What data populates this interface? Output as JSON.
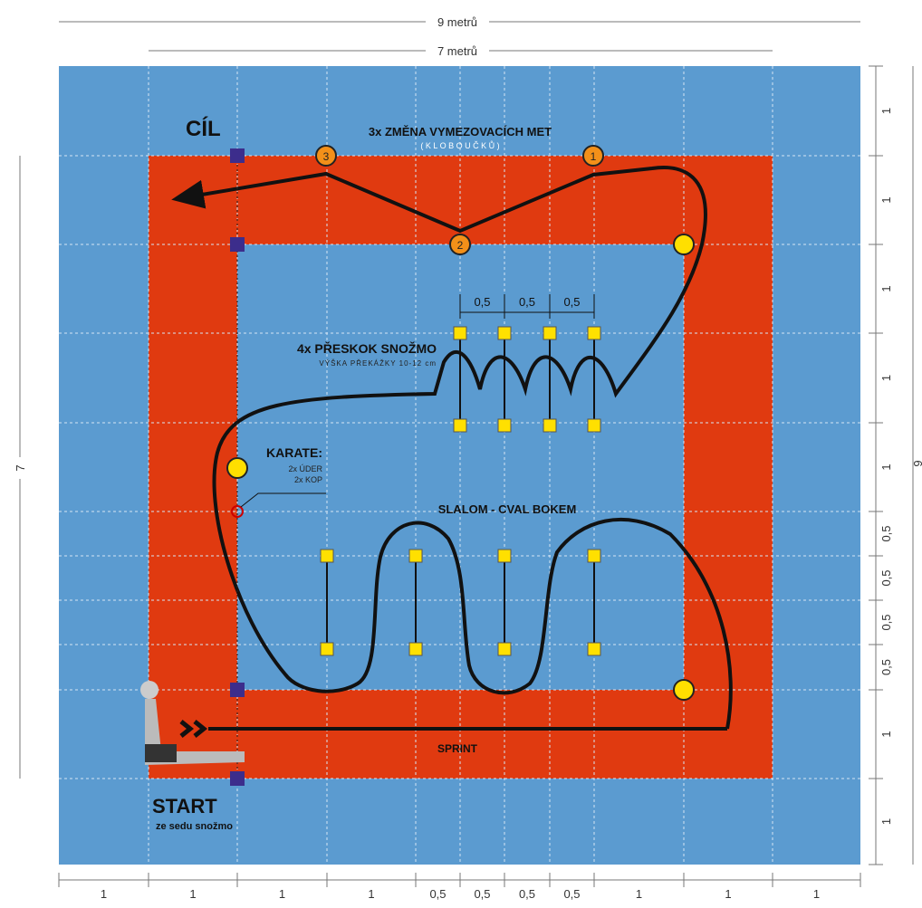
{
  "dimensions": {
    "top_outer": "9 metrů",
    "top_inner": "7 metrů",
    "left": "7",
    "right": "9",
    "bottom": [
      "1",
      "1",
      "1",
      "1",
      "0,5",
      "0,5",
      "0,5",
      "0,5",
      "1",
      "1",
      "1"
    ],
    "right_side": [
      "1",
      "1",
      "1",
      "1",
      "1",
      "0,5",
      "0,5",
      "0,5",
      "0,5",
      "1",
      "1"
    ]
  },
  "finish": {
    "label": "CÍL"
  },
  "cones": {
    "title": "3x ZMĚNA VYMEZOVACÍCH MET",
    "subtitle": "( K L O B O U Č K Ů )",
    "numbers": [
      "1",
      "2",
      "3"
    ]
  },
  "jumps": {
    "title": "4x PŘESKOK SNOŽMO",
    "subtitle": "VÝŠKA PŘEKÁŽKY 10-12 cm",
    "spacing": [
      "0,5",
      "0,5",
      "0,5"
    ]
  },
  "karate": {
    "title": "KARATE:",
    "lines": [
      "2x ÚDER",
      "2x KOP"
    ]
  },
  "slalom": {
    "title": "SLALOM - CVAL BOKEM"
  },
  "sprint": {
    "title": "SPRINT"
  },
  "start": {
    "title": "START",
    "subtitle": "ze sedu snožmo"
  }
}
